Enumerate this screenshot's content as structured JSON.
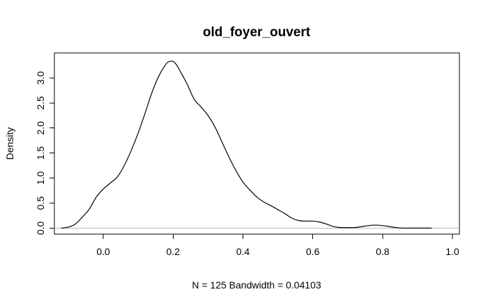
{
  "chart_data": {
    "type": "line",
    "title": "old_foyer_ouvert",
    "xlabel": "N = 125   Bandwidth = 0.04103",
    "ylabel": "Density",
    "xlim": [
      -0.14,
      1.02
    ],
    "ylim": [
      -0.12,
      3.5
    ],
    "x_ticks": [
      0.0,
      0.2,
      0.4,
      0.6,
      0.8,
      1.0
    ],
    "x_tick_labels": [
      "0.0",
      "0.2",
      "0.4",
      "0.6",
      "0.8",
      "1.0"
    ],
    "y_ticks": [
      0.0,
      0.5,
      1.0,
      1.5,
      2.0,
      2.5,
      3.0
    ],
    "y_tick_labels": [
      "0.0",
      "0.5",
      "1.0",
      "1.5",
      "2.0",
      "2.5",
      "3.0"
    ],
    "baseline_y": 0,
    "grid": false,
    "series": [
      {
        "x": [
          -0.12,
          -0.1,
          -0.08,
          -0.06,
          -0.04,
          -0.02,
          0.0,
          0.02,
          0.04,
          0.06,
          0.08,
          0.1,
          0.12,
          0.14,
          0.16,
          0.18,
          0.19,
          0.2,
          0.21,
          0.22,
          0.24,
          0.26,
          0.28,
          0.3,
          0.32,
          0.34,
          0.36,
          0.38,
          0.4,
          0.42,
          0.44,
          0.46,
          0.48,
          0.5,
          0.52,
          0.54,
          0.56,
          0.58,
          0.6,
          0.62,
          0.64,
          0.66,
          0.68,
          0.7,
          0.72,
          0.74,
          0.76,
          0.78,
          0.8,
          0.82,
          0.84,
          0.86,
          0.88,
          0.9,
          0.92,
          0.94
        ],
        "y": [
          0.0,
          0.02,
          0.08,
          0.22,
          0.38,
          0.62,
          0.78,
          0.9,
          1.02,
          1.25,
          1.55,
          1.9,
          2.3,
          2.72,
          3.05,
          3.28,
          3.33,
          3.33,
          3.26,
          3.14,
          2.88,
          2.58,
          2.42,
          2.25,
          2.02,
          1.72,
          1.42,
          1.15,
          0.92,
          0.76,
          0.62,
          0.52,
          0.45,
          0.37,
          0.29,
          0.2,
          0.15,
          0.14,
          0.14,
          0.12,
          0.08,
          0.03,
          0.01,
          0.01,
          0.01,
          0.03,
          0.05,
          0.06,
          0.05,
          0.03,
          0.01,
          0.0,
          0.0,
          0.0,
          0.0,
          0.0
        ]
      }
    ]
  }
}
